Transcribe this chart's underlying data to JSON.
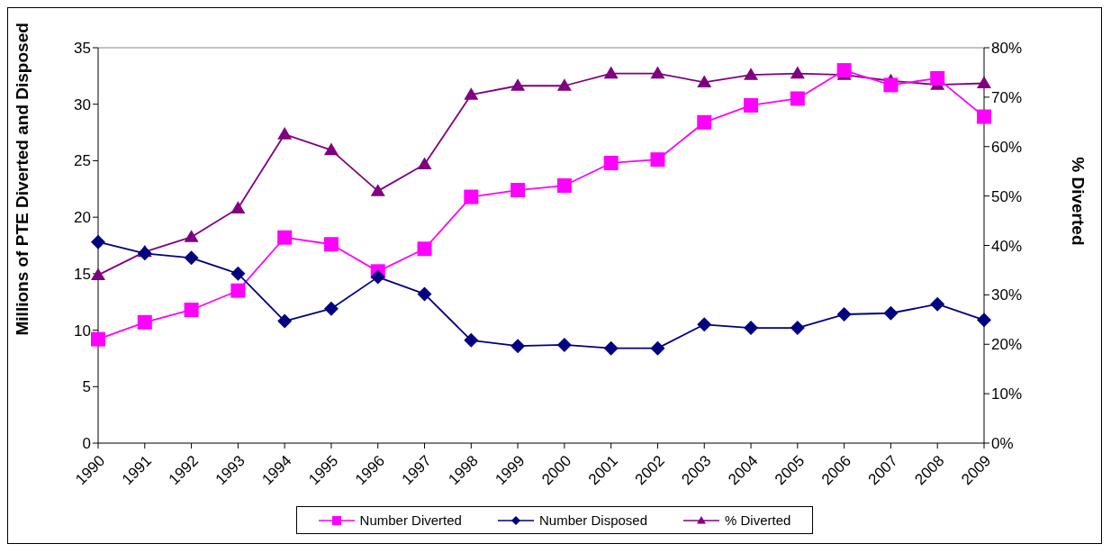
{
  "chart_data": {
    "type": "line",
    "ylabel": "Millions of PTE Diverted  and Disposed",
    "y2label": "% Diverted",
    "categories": [
      "1990",
      "1991",
      "1992",
      "1993",
      "1994",
      "1995",
      "1996",
      "1997",
      "1998",
      "1999",
      "2000",
      "2001",
      "2002",
      "2003",
      "2004",
      "2005",
      "2006",
      "2007",
      "2008",
      "2009"
    ],
    "series": [
      {
        "name": "Number Diverted",
        "color": "#ff00ff",
        "marker": "square",
        "values": [
          9.2,
          10.7,
          11.8,
          13.5,
          18.2,
          17.6,
          15.2,
          17.2,
          21.8,
          22.4,
          22.8,
          24.8,
          25.1,
          28.4,
          29.9,
          30.5,
          33.0,
          31.7,
          32.3,
          28.9
        ]
      },
      {
        "name": "Number Disposed",
        "color": "#000080",
        "marker": "diamond",
        "values": [
          17.8,
          16.8,
          16.4,
          15.0,
          10.8,
          11.9,
          14.7,
          13.2,
          9.1,
          8.6,
          8.7,
          8.4,
          8.4,
          10.5,
          10.2,
          10.2,
          11.4,
          11.5,
          12.3,
          10.9
        ]
      },
      {
        "name": "% Diverted",
        "color": "#800080",
        "marker": "triangle",
        "axis": "y2",
        "values": [
          34,
          38.7,
          41.7,
          47.5,
          62.5,
          59.3,
          51,
          56.4,
          70.5,
          72.3,
          72.3,
          74.8,
          74.8,
          73,
          74.5,
          74.8,
          74.5,
          73.3,
          72.5,
          72.8
        ]
      }
    ],
    "ylim": [
      0,
      35
    ],
    "yticks": [
      0,
      5,
      10,
      15,
      20,
      25,
      30,
      35
    ],
    "y2lim": [
      0,
      80
    ],
    "y2ticks": [
      {
        "value": 0,
        "label": "0%"
      },
      {
        "value": 10,
        "label": "10%"
      },
      {
        "value": 20,
        "label": "20%"
      },
      {
        "value": 30,
        "label": "30%"
      },
      {
        "value": 40,
        "label": "40%"
      },
      {
        "value": 50,
        "label": "50%"
      },
      {
        "value": 60,
        "label": "60%"
      },
      {
        "value": 70,
        "label": "70%"
      },
      {
        "value": 80,
        "label": "80%"
      }
    ],
    "legend": "bottom"
  }
}
